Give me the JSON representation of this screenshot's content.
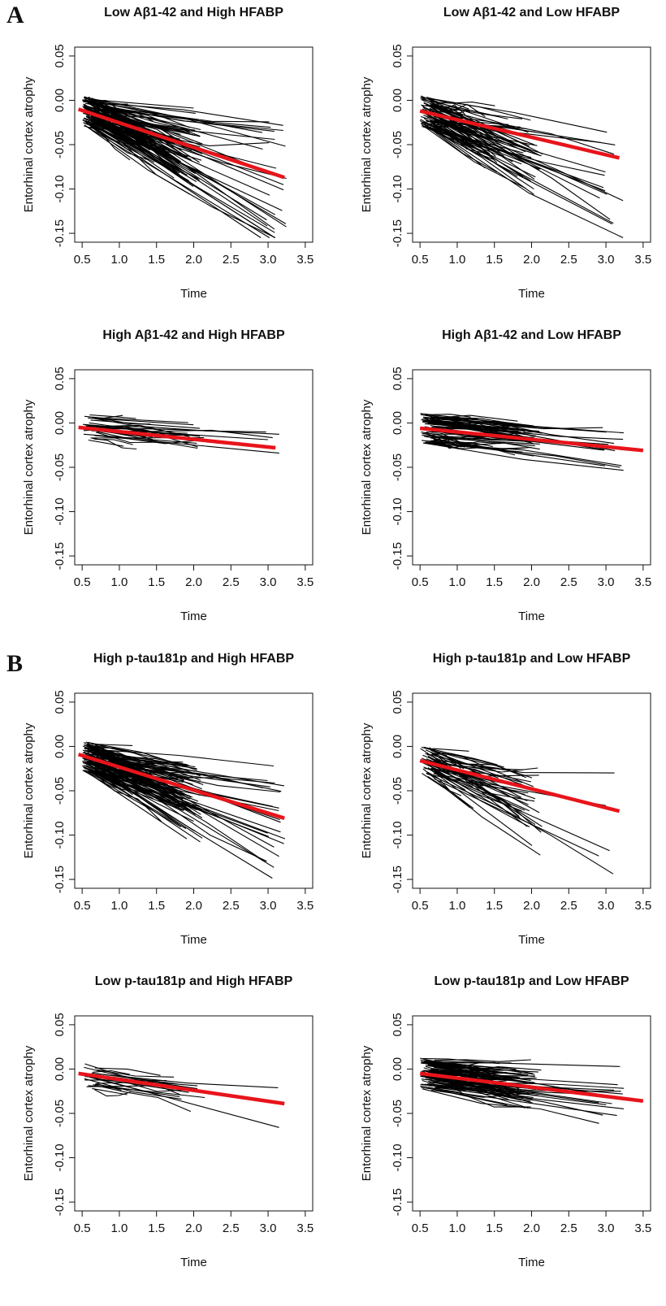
{
  "panels": {
    "A": {
      "letter": "A"
    },
    "B": {
      "letter": "B"
    }
  },
  "chart_data": [
    {
      "type": "line",
      "panel": "A",
      "title": "Low Aβ1-42 and High HFABP",
      "xlabel": "Time",
      "ylabel": "Entorhinal cortex atrophy",
      "xlim": [
        0.4,
        3.6
      ],
      "ylim": [
        -0.16,
        0.06
      ],
      "xticks": [
        "0.5",
        "1.0",
        "1.5",
        "2.0",
        "2.5",
        "3.0",
        "3.5"
      ],
      "yticks": [
        "-0.15",
        "-0.10",
        "-0.05",
        "0.00",
        "0.05"
      ],
      "n_subjects": 130,
      "spread": 1.0,
      "series": [
        {
          "type": "fit",
          "color": "#e8141b",
          "x": [
            0.45,
            3.22
          ],
          "y": [
            -0.01,
            -0.087
          ]
        }
      ]
    },
    {
      "type": "line",
      "panel": "A",
      "title": "Low Aβ1-42 and Low HFABP",
      "xlabel": "Time",
      "ylabel": "Entorhinal cortex atrophy",
      "xlim": [
        0.4,
        3.6
      ],
      "ylim": [
        -0.16,
        0.06
      ],
      "xticks": [
        "0.5",
        "1.0",
        "1.5",
        "2.0",
        "2.5",
        "3.0",
        "3.5"
      ],
      "yticks": [
        "-0.15",
        "-0.10",
        "-0.05",
        "0.00",
        "0.05"
      ],
      "n_subjects": 90,
      "spread": 1.3,
      "series": [
        {
          "type": "fit",
          "color": "#e8141b",
          "x": [
            0.5,
            3.18
          ],
          "y": [
            -0.012,
            -0.065
          ]
        }
      ]
    },
    {
      "type": "line",
      "panel": "A",
      "title": "High Aβ1-42 and High HFABP",
      "xlabel": "Time",
      "ylabel": "Entorhinal cortex atrophy",
      "xlim": [
        0.4,
        3.6
      ],
      "ylim": [
        -0.16,
        0.06
      ],
      "xticks": [
        "0.5",
        "1.0",
        "1.5",
        "2.0",
        "2.5",
        "3.0",
        "3.5"
      ],
      "yticks": [
        "-0.15",
        "-0.10",
        "-0.05",
        "0.00",
        "0.05"
      ],
      "n_subjects": 30,
      "spread": 0.6,
      "series": [
        {
          "type": "fit",
          "color": "#e8141b",
          "x": [
            0.45,
            3.1
          ],
          "y": [
            -0.005,
            -0.028
          ]
        }
      ]
    },
    {
      "type": "line",
      "panel": "A",
      "title": "High Aβ1-42 and Low HFABP",
      "xlabel": "Time",
      "ylabel": "Entorhinal cortex atrophy",
      "xlim": [
        0.4,
        3.6
      ],
      "ylim": [
        -0.16,
        0.06
      ],
      "xticks": [
        "0.5",
        "1.0",
        "1.5",
        "2.0",
        "2.5",
        "3.0",
        "3.5"
      ],
      "yticks": [
        "-0.15",
        "-0.10",
        "-0.05",
        "0.00",
        "0.05"
      ],
      "n_subjects": 75,
      "spread": 0.7,
      "series": [
        {
          "type": "fit",
          "color": "#e8141b",
          "x": [
            0.5,
            3.5
          ],
          "y": [
            -0.006,
            -0.031
          ]
        }
      ]
    },
    {
      "type": "line",
      "panel": "B",
      "title": "High p-tau181p and High HFABP",
      "xlabel": "Time",
      "ylabel": "Entorhinal cortex atrophy",
      "xlim": [
        0.4,
        3.6
      ],
      "ylim": [
        -0.16,
        0.06
      ],
      "xticks": [
        "0.5",
        "1.0",
        "1.5",
        "2.0",
        "2.5",
        "3.0",
        "3.5"
      ],
      "yticks": [
        "-0.15",
        "-0.10",
        "-0.05",
        "0.00",
        "0.05"
      ],
      "n_subjects": 140,
      "spread": 1.0,
      "series": [
        {
          "type": "fit",
          "color": "#e8141b",
          "x": [
            0.45,
            3.22
          ],
          "y": [
            -0.009,
            -0.081
          ]
        }
      ]
    },
    {
      "type": "line",
      "panel": "B",
      "title": "High p-tau181p and Low HFABP",
      "xlabel": "Time",
      "ylabel": "Entorhinal cortex atrophy",
      "xlim": [
        0.4,
        3.6
      ],
      "ylim": [
        -0.16,
        0.06
      ],
      "xticks": [
        "0.5",
        "1.0",
        "1.5",
        "2.0",
        "2.5",
        "3.0",
        "3.5"
      ],
      "yticks": [
        "-0.15",
        "-0.10",
        "-0.05",
        "0.00",
        "0.05"
      ],
      "n_subjects": 55,
      "spread": 1.4,
      "series": [
        {
          "type": "fit",
          "color": "#e8141b",
          "x": [
            0.5,
            3.18
          ],
          "y": [
            -0.016,
            -0.073
          ]
        }
      ]
    },
    {
      "type": "line",
      "panel": "B",
      "title": "Low p-tau181p and High HFABP",
      "xlabel": "Time",
      "ylabel": "Entorhinal cortex atrophy",
      "xlim": [
        0.4,
        3.6
      ],
      "ylim": [
        -0.16,
        0.06
      ],
      "xticks": [
        "0.5",
        "1.0",
        "1.5",
        "2.0",
        "2.5",
        "3.0",
        "3.5"
      ],
      "yticks": [
        "-0.15",
        "-0.10",
        "-0.05",
        "0.00",
        "0.05"
      ],
      "n_subjects": 22,
      "spread": 0.8,
      "series": [
        {
          "type": "fit",
          "color": "#e8141b",
          "x": [
            0.45,
            3.22
          ],
          "y": [
            -0.005,
            -0.039
          ]
        }
      ]
    },
    {
      "type": "line",
      "panel": "B",
      "title": "Low p-tau181p and Low HFABP",
      "xlabel": "Time",
      "ylabel": "Entorhinal cortex atrophy",
      "xlim": [
        0.4,
        3.6
      ],
      "ylim": [
        -0.16,
        0.06
      ],
      "xticks": [
        "0.5",
        "1.0",
        "1.5",
        "2.0",
        "2.5",
        "3.0",
        "3.5"
      ],
      "yticks": [
        "-0.15",
        "-0.10",
        "-0.05",
        "0.00",
        "0.05"
      ],
      "n_subjects": 110,
      "spread": 0.8,
      "series": [
        {
          "type": "fit",
          "color": "#e8141b",
          "x": [
            0.5,
            3.5
          ],
          "y": [
            -0.005,
            -0.036
          ]
        }
      ]
    }
  ]
}
